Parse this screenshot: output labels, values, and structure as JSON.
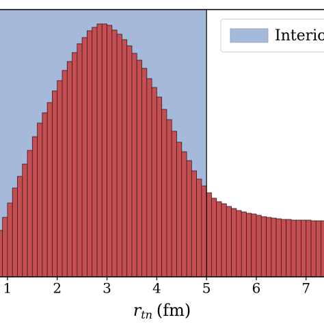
{
  "chart_data": {
    "type": "histogram",
    "bins": [
      0.8,
      0.9,
      1.0,
      1.1,
      1.2,
      1.3,
      1.4,
      1.5,
      1.6,
      1.7,
      1.8,
      1.9,
      2.0,
      2.1,
      2.2,
      2.3,
      2.4,
      2.5,
      2.6,
      2.7,
      2.8,
      2.9,
      3.0,
      3.1,
      3.2,
      3.3,
      3.4,
      3.5,
      3.6,
      3.7,
      3.8,
      3.9,
      4.0,
      4.1,
      4.2,
      4.3,
      4.4,
      4.5,
      4.6,
      4.7,
      4.8,
      4.9,
      5.0,
      5.1,
      5.2,
      5.3,
      5.4,
      5.5,
      5.6,
      5.7,
      5.8,
      5.9,
      6.0,
      6.1,
      6.2,
      6.3,
      6.4,
      6.5,
      6.6,
      6.7,
      6.8,
      6.9,
      7.0,
      7.1,
      7.2,
      7.3,
      7.4
    ],
    "values": [
      68,
      87,
      108,
      130,
      147,
      165,
      185,
      205,
      225,
      240,
      255,
      272,
      287,
      302,
      315,
      328,
      341,
      350,
      360,
      365,
      370,
      370,
      368,
      361,
      355,
      347,
      338,
      327,
      317,
      305,
      290,
      277,
      263,
      245,
      230,
      213,
      197,
      183,
      170,
      155,
      143,
      133,
      123,
      115,
      110,
      107,
      103,
      100,
      97,
      95,
      93,
      92,
      90,
      88,
      87,
      86,
      85,
      84,
      84,
      83,
      83,
      83,
      83,
      82,
      82,
      82
    ],
    "color": "#c44e52",
    "xlim": [
      0.85,
      7.36
    ],
    "ylim": [
      0,
      391
    ],
    "xticks": [
      1,
      2,
      3,
      4,
      5,
      6,
      7
    ],
    "x_label": {
      "symbol": "r",
      "subscript": "tn",
      "unit": "(fm)"
    },
    "shade": {
      "x_end": 5,
      "color": "#a5b9da",
      "label": "Interior"
    }
  }
}
